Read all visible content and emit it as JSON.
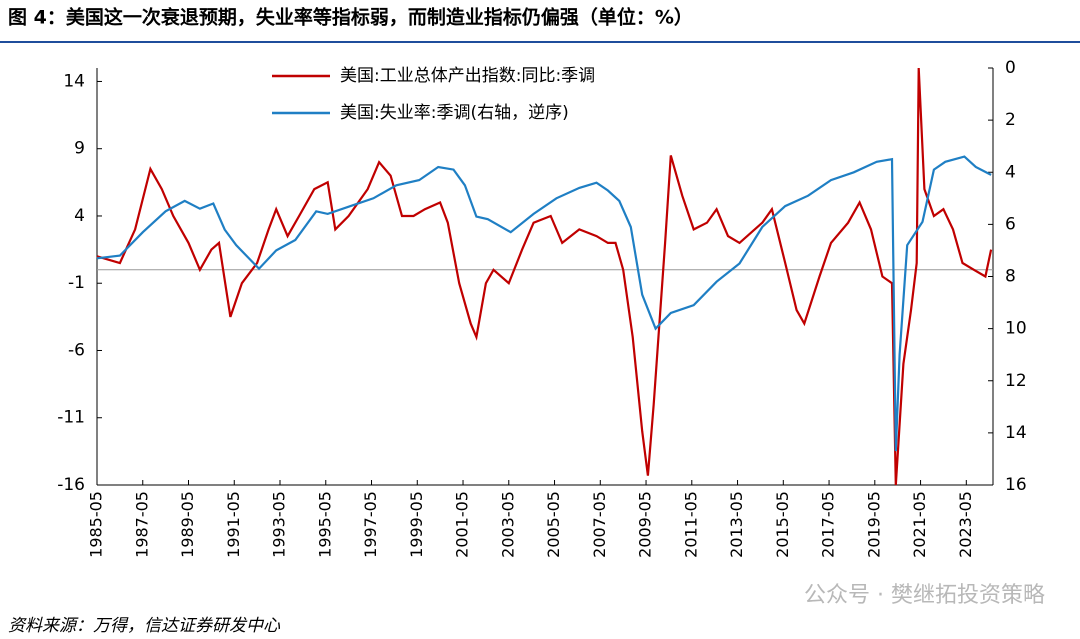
{
  "chart_data": {
    "type": "line",
    "title": "图 4：美国这一次衰退预期，失业率等指标弱，而制造业指标仍偏强（单位：%）",
    "source": "资料来源：万得，信达证券研发中心",
    "watermark": "公众号 · 樊继拓投资策略",
    "xlim": [
      "1985-05",
      "2024-07"
    ],
    "xticks": [
      "1985-05",
      "1987-05",
      "1989-05",
      "1991-05",
      "1993-05",
      "1995-05",
      "1997-05",
      "1999-05",
      "2001-05",
      "2003-05",
      "2005-05",
      "2007-05",
      "2009-05",
      "2011-05",
      "2013-05",
      "2015-05",
      "2017-05",
      "2019-05",
      "2021-05",
      "2023-05"
    ],
    "ylim": [
      -16,
      15
    ],
    "yticks": [
      14,
      9,
      4,
      -1,
      -6,
      -11,
      -16
    ],
    "y2lim": [
      16,
      0
    ],
    "y2ticks": [
      0,
      2,
      4,
      6,
      8,
      10,
      12,
      14,
      16
    ],
    "legend": "top",
    "series": [
      {
        "name": "美国:工业总体产出指数:同比:季调",
        "color": "#c00000",
        "axis": "y",
        "x": [
          "1985-05",
          "1986-05",
          "1987-01",
          "1987-09",
          "1988-03",
          "1988-09",
          "1989-05",
          "1989-11",
          "1990-05",
          "1990-09",
          "1991-03",
          "1991-09",
          "1992-05",
          "1992-11",
          "1993-03",
          "1993-09",
          "1994-03",
          "1994-11",
          "1995-06",
          "1995-10",
          "1996-05",
          "1997-03",
          "1997-09",
          "1998-03",
          "1998-09",
          "1999-03",
          "1999-09",
          "2000-05",
          "2000-09",
          "2001-03",
          "2001-09",
          "2001-12",
          "2002-05",
          "2002-09",
          "2003-05",
          "2003-12",
          "2004-06",
          "2005-03",
          "2005-09",
          "2006-06",
          "2007-03",
          "2007-09",
          "2008-01",
          "2008-05",
          "2008-10",
          "2009-03",
          "2009-06",
          "2009-09",
          "2010-03",
          "2010-06",
          "2010-12",
          "2011-06",
          "2012-01",
          "2012-06",
          "2012-12",
          "2013-06",
          "2014-06",
          "2014-11",
          "2015-06",
          "2015-12",
          "2016-04",
          "2016-12",
          "2017-06",
          "2018-03",
          "2018-09",
          "2019-03",
          "2019-09",
          "2020-02",
          "2020-04",
          "2020-08",
          "2020-12",
          "2021-03",
          "2021-04",
          "2021-07",
          "2021-12",
          "2022-05",
          "2022-10",
          "2023-03",
          "2023-09",
          "2024-03",
          "2024-06"
        ],
        "values": [
          1,
          0.5,
          3,
          7.5,
          6,
          4,
          2,
          0,
          1.5,
          2,
          -3.5,
          -1,
          0.5,
          3,
          4.5,
          2.5,
          4,
          6,
          6.5,
          3,
          4,
          6,
          8,
          7,
          4,
          4,
          4.5,
          5,
          3.5,
          -1,
          -4,
          -5,
          -1,
          0,
          -1,
          1.5,
          3.5,
          4,
          2,
          3,
          2.5,
          2,
          2,
          0,
          -5,
          -12,
          -15.3,
          -10,
          2,
          8.5,
          5.5,
          3,
          3.5,
          4.5,
          2.5,
          2,
          3.5,
          4.5,
          0.5,
          -3,
          -4,
          -0.5,
          2,
          3.5,
          5,
          3,
          -0.5,
          -1,
          -16,
          -7,
          -3,
          0.5,
          15,
          6,
          4,
          4.5,
          3,
          0.5,
          0,
          -0.5,
          1.5
        ]
      },
      {
        "name": "美国:失业率:季调(右轴，逆序)",
        "color": "#1f7fc4",
        "axis": "y2",
        "x": [
          "1985-05",
          "1986-05",
          "1987-05",
          "1988-05",
          "1989-03",
          "1989-11",
          "1990-06",
          "1990-12",
          "1991-06",
          "1992-06",
          "1993-03",
          "1994-01",
          "1994-12",
          "1995-06",
          "1996-06",
          "1997-06",
          "1998-06",
          "1999-06",
          "2000-04",
          "2000-12",
          "2001-06",
          "2001-12",
          "2002-06",
          "2003-06",
          "2004-06",
          "2005-06",
          "2006-06",
          "2007-03",
          "2007-09",
          "2008-03",
          "2008-09",
          "2009-03",
          "2009-10",
          "2010-06",
          "2011-06",
          "2012-06",
          "2013-06",
          "2014-06",
          "2015-06",
          "2016-06",
          "2017-06",
          "2018-06",
          "2019-06",
          "2020-02",
          "2020-04",
          "2020-06",
          "2020-10",
          "2021-06",
          "2021-12",
          "2022-06",
          "2023-04",
          "2023-10",
          "2024-06"
        ],
        "values": [
          7.3,
          7.2,
          6.3,
          5.5,
          5.1,
          5.4,
          5.2,
          6.2,
          6.8,
          7.7,
          7.0,
          6.6,
          5.5,
          5.6,
          5.3,
          5.0,
          4.5,
          4.3,
          3.8,
          3.9,
          4.5,
          5.7,
          5.8,
          6.3,
          5.6,
          5.0,
          4.6,
          4.4,
          4.7,
          5.1,
          6.1,
          8.7,
          10.0,
          9.4,
          9.1,
          8.2,
          7.5,
          6.1,
          5.3,
          4.9,
          4.3,
          4.0,
          3.6,
          3.5,
          14.7,
          11.0,
          6.8,
          5.9,
          3.9,
          3.6,
          3.4,
          3.8,
          4.1
        ]
      }
    ]
  }
}
